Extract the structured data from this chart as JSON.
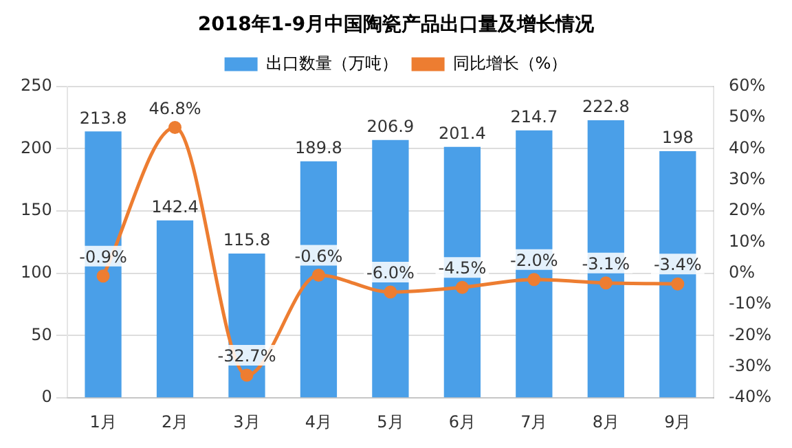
{
  "chart_data": {
    "type": "bar",
    "title": "2018年1-9月中国陶瓷产品出口量及增长情况",
    "categories": [
      "1月",
      "2月",
      "3月",
      "4月",
      "5月",
      "6月",
      "7月",
      "8月",
      "9月"
    ],
    "series": [
      {
        "name": "出口数量（万吨）",
        "color": "#4a9fe8",
        "values": [
          213.8,
          142.4,
          115.8,
          189.8,
          206.9,
          201.4,
          214.7,
          222.8,
          198
        ],
        "value_labels": [
          "213.8",
          "142.4",
          "115.8",
          "189.8",
          "206.9",
          "201.4",
          "214.7",
          "222.8",
          "198"
        ]
      },
      {
        "name": "同比增长（%）",
        "type": "line",
        "axis": "y2",
        "color": "#ed7d31",
        "marker": "circle",
        "values": [
          -0.9,
          46.8,
          -32.7,
          -0.6,
          -6.0,
          -4.5,
          -2.0,
          -3.1,
          -3.4
        ],
        "value_labels": [
          "-0.9%",
          "46.8%",
          "-32.7%",
          "-0.6%",
          "-6.0%",
          "-4.5%",
          "-2.0%",
          "-3.1%",
          "-3.4%"
        ]
      }
    ],
    "ylim": [
      0,
      250
    ],
    "yticks": [
      0,
      50,
      100,
      150,
      200,
      250
    ],
    "y2lim": [
      -40,
      60
    ],
    "y2ticks": [
      {
        "value": -40,
        "label": "-40%"
      },
      {
        "value": -30,
        "label": "-30%"
      },
      {
        "value": -20,
        "label": "-20%"
      },
      {
        "value": -10,
        "label": "-10%"
      },
      {
        "value": 0,
        "label": "0%"
      },
      {
        "value": 10,
        "label": "10%"
      },
      {
        "value": 20,
        "label": "20%"
      },
      {
        "value": 30,
        "label": "30%"
      },
      {
        "value": 40,
        "label": "40%"
      },
      {
        "value": 50,
        "label": "50%"
      },
      {
        "value": 60,
        "label": "60%"
      }
    ],
    "grid": "y",
    "legend": "top"
  }
}
